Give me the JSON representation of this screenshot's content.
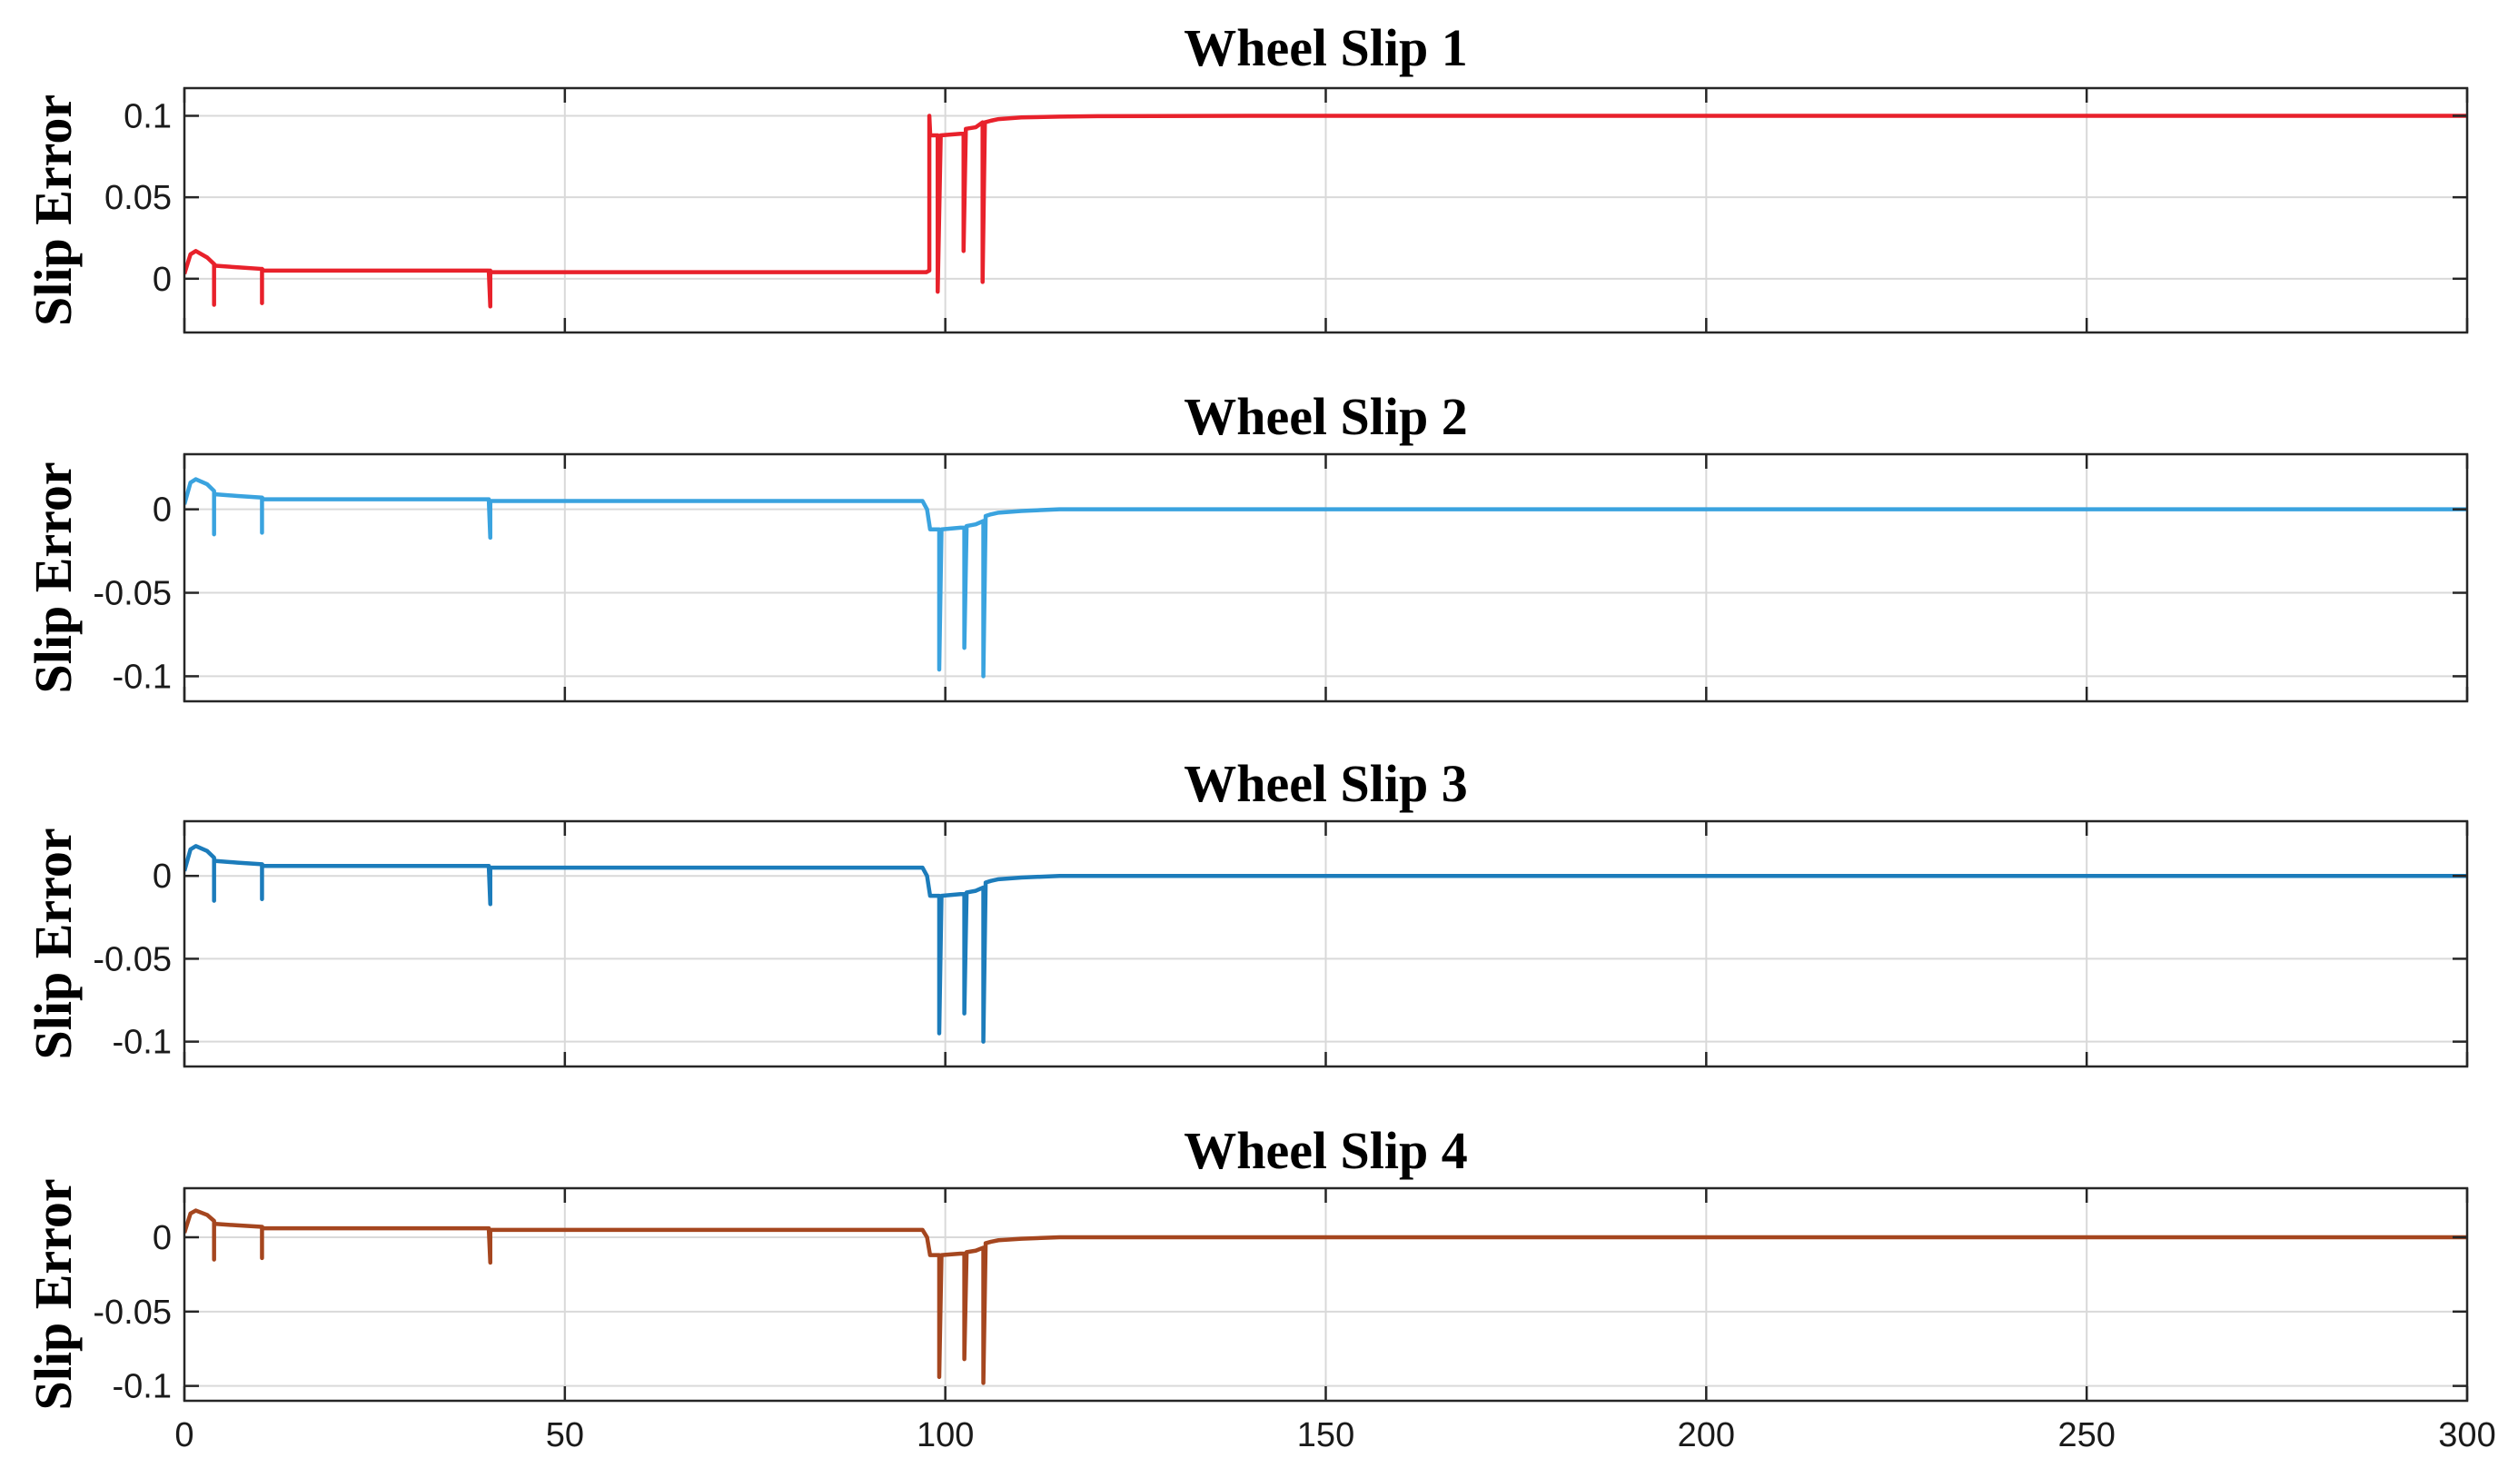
{
  "chart_data": [
    {
      "type": "line",
      "title": "Wheel Slip 1",
      "xlabel": "",
      "ylabel": "Slip Error",
      "xlim": [
        0,
        300
      ],
      "ylim": [
        -0.033,
        0.117
      ],
      "xticks": [
        0,
        50,
        100,
        150,
        200,
        250,
        300
      ],
      "xtick_labels": [],
      "yticks": [
        0,
        0.05,
        0.1
      ],
      "ytick_labels": [
        "0",
        "0.05",
        "0.1"
      ],
      "grid": true,
      "color": "#e8212b",
      "series": [
        {
          "x": [
            0,
            0.8,
            1.5,
            3,
            3.9,
            3.9,
            3.9,
            4.1,
            4.1,
            7,
            10.2,
            10.2,
            10.2,
            10.4,
            10.4,
            20,
            30,
            40,
            40.2,
            40.2,
            40.2,
            40.4,
            40.4,
            60,
            80,
            97.5,
            97.9,
            97.9,
            98.0,
            98.0,
            98.6,
            99.0,
            99.0,
            99.4,
            99.4,
            102,
            102.4,
            102.4,
            102.7,
            102.7,
            104,
            104.9,
            104.9,
            105.2,
            105.2,
            106,
            107,
            110,
            115,
            120,
            140,
            170,
            200,
            250,
            300
          ],
          "y": [
            0.003,
            0.015,
            0.017,
            0.013,
            0.009,
            -0.016,
            0.009,
            0.008,
            0.008,
            0.007,
            0.006,
            -0.015,
            0.006,
            0.005,
            0.005,
            0.005,
            0.005,
            0.005,
            -0.017,
            0.005,
            0.004,
            0.004,
            0.004,
            0.004,
            0.004,
            0.004,
            0.005,
            0.1,
            0.09,
            0.088,
            0.088,
            0.088,
            -0.008,
            0.088,
            0.088,
            0.089,
            0.089,
            0.017,
            0.092,
            0.092,
            0.093,
            0.096,
            -0.002,
            0.096,
            0.096,
            0.097,
            0.098,
            0.099,
            0.0995,
            0.0998,
            0.1,
            0.1,
            0.1,
            0.1,
            0.1
          ]
        }
      ]
    },
    {
      "type": "line",
      "title": "Wheel Slip 2",
      "xlabel": "",
      "ylabel": "Slip Error",
      "xlim": [
        0,
        300
      ],
      "ylim": [
        -0.115,
        0.033
      ],
      "xticks": [
        0,
        50,
        100,
        150,
        200,
        250,
        300
      ],
      "xtick_labels": [],
      "yticks": [
        -0.1,
        -0.05,
        0
      ],
      "ytick_labels": [
        "-0.1",
        "-0.05",
        "0"
      ],
      "grid": true,
      "color": "#3aa3df",
      "series": [
        {
          "x": [
            0,
            0.8,
            1.5,
            3,
            3.9,
            3.9,
            3.9,
            4.1,
            4.1,
            7,
            10.2,
            10.2,
            10.2,
            10.4,
            10.4,
            20,
            30,
            40,
            40.2,
            40.2,
            40.2,
            40.4,
            40.4,
            60,
            80,
            97,
            97.6,
            98.0,
            98.4,
            99.2,
            99.2,
            99.5,
            99.5,
            102,
            102.5,
            102.5,
            102.8,
            102.8,
            104,
            105.0,
            105.0,
            105.3,
            105.3,
            106,
            107,
            110,
            115,
            120,
            140,
            170,
            200,
            250,
            300
          ],
          "y": [
            0.003,
            0.016,
            0.018,
            0.015,
            0.011,
            -0.015,
            0.01,
            0.009,
            0.009,
            0.008,
            0.007,
            -0.014,
            0.007,
            0.006,
            0.006,
            0.006,
            0.006,
            0.006,
            -0.017,
            0.005,
            0.005,
            0.005,
            0.005,
            0.005,
            0.005,
            0.005,
            0.0,
            -0.012,
            -0.012,
            -0.012,
            -0.096,
            -0.012,
            -0.012,
            -0.011,
            -0.011,
            -0.083,
            -0.01,
            -0.01,
            -0.009,
            -0.007,
            -0.1,
            -0.005,
            -0.004,
            -0.003,
            -0.002,
            -0.001,
            0.0,
            0.0,
            0.0,
            0.0,
            0.0,
            0.0,
            0.0
          ]
        }
      ]
    },
    {
      "type": "line",
      "title": "Wheel Slip 3",
      "xlabel": "",
      "ylabel": "Slip Error",
      "xlim": [
        0,
        300
      ],
      "ylim": [
        -0.115,
        0.033
      ],
      "xticks": [
        0,
        50,
        100,
        150,
        200,
        250,
        300
      ],
      "xtick_labels": [],
      "yticks": [
        -0.1,
        -0.05,
        0
      ],
      "ytick_labels": [
        "-0.1",
        "-0.05",
        "0"
      ],
      "grid": true,
      "color": "#1c7cbb",
      "series": [
        {
          "x": [
            0,
            0.8,
            1.5,
            3,
            3.9,
            3.9,
            3.9,
            4.1,
            4.1,
            7,
            10.2,
            10.2,
            10.2,
            10.4,
            10.4,
            20,
            30,
            40,
            40.2,
            40.2,
            40.2,
            40.4,
            40.4,
            60,
            80,
            97,
            97.6,
            98.0,
            98.4,
            99.2,
            99.2,
            99.5,
            99.5,
            102,
            102.5,
            102.5,
            102.8,
            102.8,
            104,
            105.0,
            105.0,
            105.3,
            105.3,
            106,
            107,
            110,
            115,
            120,
            140,
            170,
            200,
            250,
            300
          ],
          "y": [
            0.003,
            0.016,
            0.018,
            0.015,
            0.011,
            -0.015,
            0.01,
            0.009,
            0.009,
            0.008,
            0.007,
            -0.014,
            0.007,
            0.006,
            0.006,
            0.006,
            0.006,
            0.006,
            -0.017,
            0.005,
            0.005,
            0.005,
            0.005,
            0.005,
            0.005,
            0.005,
            0.0,
            -0.012,
            -0.012,
            -0.012,
            -0.095,
            -0.012,
            -0.012,
            -0.011,
            -0.011,
            -0.083,
            -0.01,
            -0.01,
            -0.009,
            -0.007,
            -0.1,
            -0.005,
            -0.004,
            -0.003,
            -0.002,
            -0.001,
            0.0,
            0.0,
            0.0,
            0.0,
            0.0,
            0.0,
            0.0
          ]
        }
      ]
    },
    {
      "type": "line",
      "title": "Wheel Slip 4",
      "xlabel": "",
      "ylabel": "Slip Error",
      "xlim": [
        0,
        300
      ],
      "ylim": [
        -0.11,
        0.033
      ],
      "xticks": [
        0,
        50,
        100,
        150,
        200,
        250,
        300
      ],
      "xtick_labels": [
        "0",
        "50",
        "100",
        "150",
        "200",
        "250",
        "300"
      ],
      "yticks": [
        -0.1,
        -0.05,
        0
      ],
      "ytick_labels": [
        "-0.1",
        "-0.05",
        "0"
      ],
      "grid": true,
      "color": "#a5461f",
      "series": [
        {
          "x": [
            0,
            0.8,
            1.5,
            3,
            3.9,
            3.9,
            3.9,
            4.1,
            4.1,
            7,
            10.2,
            10.2,
            10.2,
            10.4,
            10.4,
            20,
            30,
            40,
            40.2,
            40.2,
            40.2,
            40.4,
            40.4,
            60,
            80,
            97,
            97.6,
            98.0,
            98.4,
            99.2,
            99.2,
            99.5,
            99.5,
            102,
            102.5,
            102.5,
            102.8,
            102.8,
            104,
            105.0,
            105.0,
            105.3,
            105.3,
            106,
            107,
            110,
            115,
            120,
            140,
            170,
            200,
            250,
            300
          ],
          "y": [
            0.003,
            0.016,
            0.018,
            0.015,
            0.011,
            -0.015,
            0.01,
            0.009,
            0.009,
            0.008,
            0.007,
            -0.014,
            0.007,
            0.006,
            0.006,
            0.006,
            0.006,
            0.006,
            -0.017,
            0.005,
            0.005,
            0.005,
            0.005,
            0.005,
            0.005,
            0.005,
            0.0,
            -0.012,
            -0.012,
            -0.012,
            -0.094,
            -0.012,
            -0.012,
            -0.011,
            -0.011,
            -0.082,
            -0.01,
            -0.01,
            -0.009,
            -0.007,
            -0.098,
            -0.005,
            -0.004,
            -0.003,
            -0.002,
            -0.001,
            0.0,
            0.0,
            0.0,
            0.0,
            0.0,
            0.0,
            0.0
          ]
        }
      ]
    }
  ]
}
